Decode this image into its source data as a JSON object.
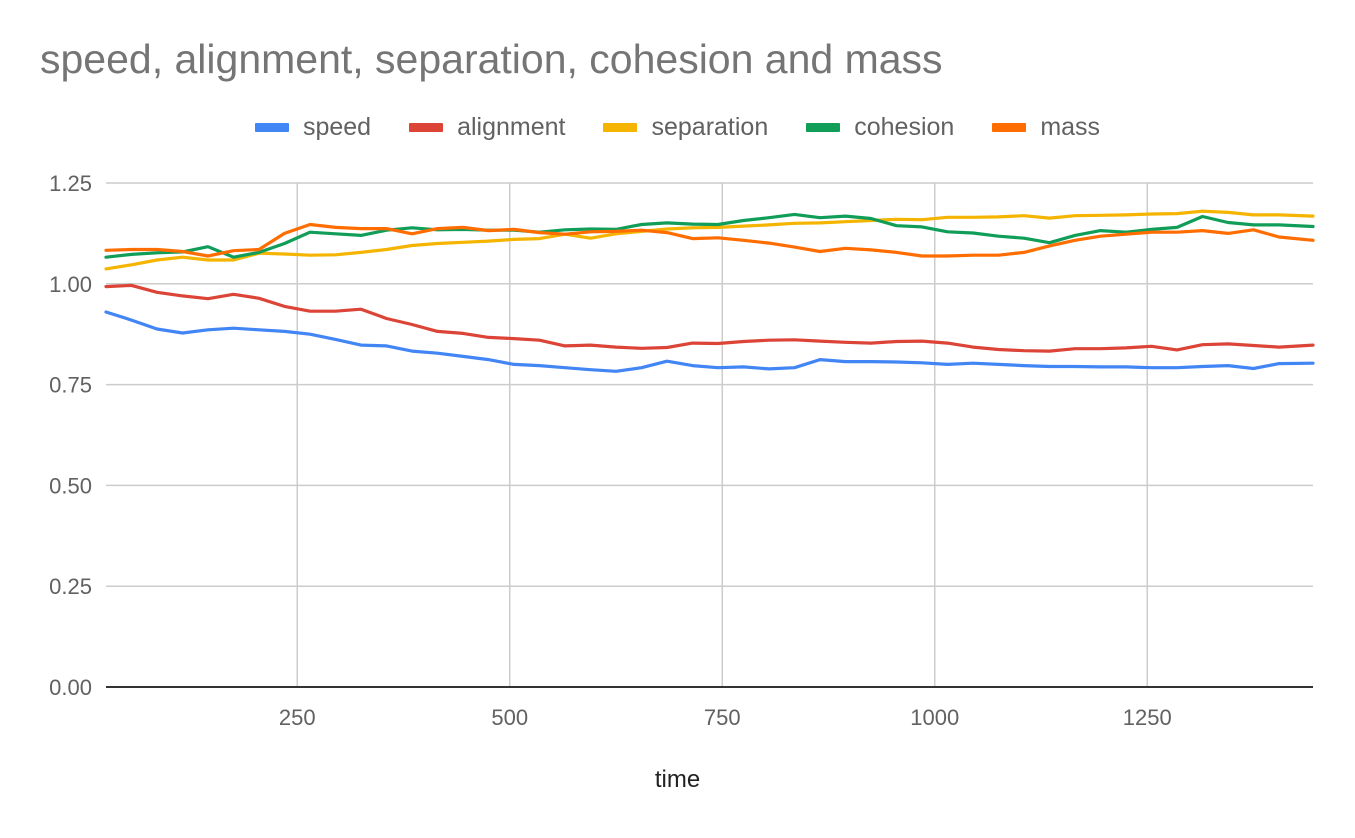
{
  "chart_data": {
    "type": "line",
    "title": "speed, alignment, separation, cohesion and mass",
    "xlabel": "time",
    "ylabel": "",
    "xlim": [
      25,
      1445
    ],
    "ylim": [
      0,
      1.25
    ],
    "x_ticks": [
      250,
      500,
      750,
      1000,
      1250
    ],
    "x_tick_labels": [
      "250",
      "500",
      "750",
      "1000",
      "1250"
    ],
    "y_ticks": [
      0,
      0.25,
      0.5,
      0.75,
      1.0,
      1.25
    ],
    "y_tick_labels": [
      "0.00",
      "0.25",
      "0.50",
      "0.75",
      "1.00",
      "1.25"
    ],
    "grid": true,
    "legend_position": "top",
    "x": [
      25,
      55,
      85,
      115,
      145,
      175,
      205,
      235,
      265,
      295,
      325,
      355,
      385,
      415,
      445,
      475,
      505,
      535,
      565,
      595,
      625,
      655,
      685,
      715,
      745,
      775,
      805,
      835,
      865,
      895,
      925,
      955,
      985,
      1015,
      1045,
      1075,
      1105,
      1135,
      1165,
      1195,
      1225,
      1255,
      1285,
      1315,
      1345,
      1375,
      1405,
      1445
    ],
    "series": [
      {
        "name": "speed",
        "color": "#4285F4",
        "values": [
          0.93,
          0.91,
          0.888,
          0.878,
          0.886,
          0.89,
          0.886,
          0.882,
          0.875,
          0.862,
          0.848,
          0.846,
          0.833,
          0.828,
          0.82,
          0.812,
          0.8,
          0.797,
          0.792,
          0.787,
          0.783,
          0.792,
          0.808,
          0.797,
          0.792,
          0.794,
          0.789,
          0.792,
          0.812,
          0.807,
          0.807,
          0.806,
          0.804,
          0.8,
          0.803,
          0.8,
          0.797,
          0.795,
          0.795,
          0.794,
          0.794,
          0.792,
          0.792,
          0.795,
          0.797,
          0.79,
          0.802,
          0.803
        ]
      },
      {
        "name": "alignment",
        "color": "#DB4437",
        "values": [
          0.993,
          0.996,
          0.979,
          0.97,
          0.963,
          0.974,
          0.964,
          0.944,
          0.932,
          0.932,
          0.937,
          0.914,
          0.899,
          0.882,
          0.877,
          0.867,
          0.864,
          0.86,
          0.846,
          0.848,
          0.843,
          0.84,
          0.842,
          0.853,
          0.852,
          0.857,
          0.86,
          0.861,
          0.858,
          0.855,
          0.853,
          0.857,
          0.858,
          0.853,
          0.843,
          0.837,
          0.834,
          0.833,
          0.839,
          0.839,
          0.841,
          0.845,
          0.836,
          0.849,
          0.851,
          0.847,
          0.843,
          0.848
        ]
      },
      {
        "name": "separation",
        "color": "#F4B400",
        "values": [
          1.037,
          1.047,
          1.059,
          1.066,
          1.059,
          1.059,
          1.076,
          1.074,
          1.071,
          1.072,
          1.078,
          1.085,
          1.095,
          1.1,
          1.103,
          1.106,
          1.11,
          1.112,
          1.123,
          1.113,
          1.124,
          1.13,
          1.136,
          1.139,
          1.14,
          1.143,
          1.146,
          1.15,
          1.151,
          1.154,
          1.157,
          1.16,
          1.159,
          1.165,
          1.165,
          1.166,
          1.169,
          1.163,
          1.169,
          1.17,
          1.171,
          1.173,
          1.174,
          1.18,
          1.177,
          1.171,
          1.171,
          1.168
        ]
      },
      {
        "name": "cohesion",
        "color": "#0F9D58",
        "values": [
          1.066,
          1.073,
          1.077,
          1.079,
          1.092,
          1.066,
          1.078,
          1.1,
          1.128,
          1.124,
          1.12,
          1.133,
          1.139,
          1.134,
          1.135,
          1.133,
          1.133,
          1.128,
          1.134,
          1.136,
          1.135,
          1.147,
          1.151,
          1.148,
          1.147,
          1.157,
          1.164,
          1.172,
          1.164,
          1.168,
          1.162,
          1.144,
          1.141,
          1.129,
          1.126,
          1.118,
          1.113,
          1.102,
          1.12,
          1.132,
          1.128,
          1.135,
          1.14,
          1.167,
          1.152,
          1.146,
          1.146,
          1.142
        ]
      },
      {
        "name": "mass",
        "color": "#FF6D00",
        "values": [
          1.083,
          1.085,
          1.085,
          1.08,
          1.069,
          1.082,
          1.085,
          1.125,
          1.147,
          1.14,
          1.137,
          1.137,
          1.124,
          1.137,
          1.14,
          1.132,
          1.135,
          1.127,
          1.123,
          1.129,
          1.13,
          1.133,
          1.127,
          1.112,
          1.114,
          1.108,
          1.101,
          1.091,
          1.08,
          1.088,
          1.084,
          1.078,
          1.069,
          1.069,
          1.071,
          1.071,
          1.078,
          1.094,
          1.108,
          1.118,
          1.123,
          1.128,
          1.128,
          1.132,
          1.125,
          1.134,
          1.116,
          1.108
        ]
      }
    ]
  }
}
